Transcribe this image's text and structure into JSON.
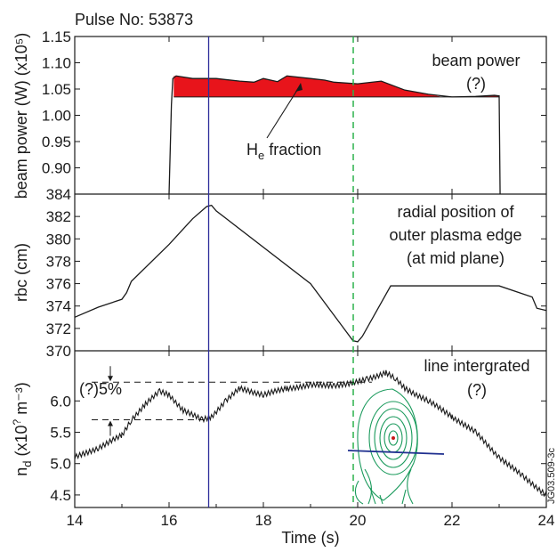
{
  "figure": {
    "pulse_label": "Pulse No: 53873",
    "figure_id": "JG03.509-3c",
    "xlabel": "Time (s)"
  },
  "chart_data": [
    {
      "type": "area",
      "panel": "top",
      "ylabel": "beam power (W) (x10⁵)",
      "xlim": [
        14,
        24
      ],
      "ylim": [
        0.85,
        1.15
      ],
      "x_ticks": [
        14,
        16,
        18,
        20,
        22,
        24
      ],
      "y_ticks": [
        "0.90",
        "0.95",
        "1.00",
        "1.05",
        "1.10",
        "1.15"
      ],
      "annotations": {
        "legend": "beam power",
        "legend_note": "(?)",
        "arrow_label": "H",
        "arrow_label_sub": "e",
        "arrow_label_rest": " fraction"
      },
      "series": [
        {
          "role": "outline",
          "x": [
            16.0,
            16.05,
            16.08,
            16.15,
            16.5,
            17.0,
            17.5,
            17.8,
            18.0,
            18.3,
            18.5,
            19.0,
            19.3,
            19.5,
            20.0,
            20.5,
            21.0,
            21.5,
            22.0,
            22.5,
            22.9,
            23.0,
            23.02
          ],
          "y": [
            0.85,
            1.02,
            1.07,
            1.075,
            1.07,
            1.07,
            1.065,
            1.063,
            1.07,
            1.064,
            1.075,
            1.07,
            1.067,
            1.063,
            1.06,
            1.065,
            1.048,
            1.04,
            1.035,
            1.036,
            1.038,
            1.037,
            0.85
          ]
        },
        {
          "role": "He fraction fill",
          "color": "#e8141b",
          "baseline": 1.035,
          "x": [
            16.1,
            16.5,
            17.0,
            17.5,
            17.8,
            18.0,
            18.3,
            18.5,
            19.0,
            19.3,
            19.5,
            20.0,
            20.5,
            21.0,
            21.5,
            21.8,
            22.0,
            22.5,
            22.9,
            23.0
          ],
          "y": [
            1.075,
            1.07,
            1.07,
            1.065,
            1.063,
            1.07,
            1.064,
            1.075,
            1.07,
            1.067,
            1.063,
            1.06,
            1.065,
            1.048,
            1.04,
            1.035,
            1.035,
            1.036,
            1.038,
            1.037
          ]
        }
      ]
    },
    {
      "type": "line",
      "panel": "middle",
      "ylabel": "rbc (cm)",
      "xlim": [
        14,
        24
      ],
      "ylim": [
        370,
        384
      ],
      "y_ticks": [
        "370",
        "372",
        "374",
        "376",
        "378",
        "380",
        "382",
        "384"
      ],
      "annotations": {
        "line1": "radial position of",
        "line2": "outer plasma edge",
        "line3": "(at mid plane)"
      },
      "series": [
        {
          "x": [
            14.0,
            14.5,
            15.0,
            15.1,
            15.2,
            16.0,
            16.5,
            16.8,
            16.9,
            17.0,
            19.0,
            19.9,
            20.0,
            20.1,
            20.7,
            21.0,
            22.0,
            23.0,
            23.7,
            23.8,
            24.0
          ],
          "y": [
            373.0,
            373.9,
            374.6,
            375.2,
            376.2,
            379.5,
            381.8,
            382.9,
            383.0,
            382.5,
            376.0,
            370.9,
            370.8,
            371.3,
            375.8,
            375.8,
            375.8,
            375.8,
            374.8,
            373.8,
            373.6
          ]
        }
      ]
    },
    {
      "type": "line",
      "panel": "bottom",
      "ylabel": "nd (x10? m⁻³)",
      "ylabel_parts": {
        "base": "n",
        "sub": "d",
        "rest": " (x10",
        "sup": "?",
        "tail": " m⁻³)"
      },
      "xlim": [
        14,
        24
      ],
      "ylim": [
        4.3,
        6.8
      ],
      "y_ticks": [
        "4.5",
        "5.0",
        "5.5",
        "6.0"
      ],
      "annotations": {
        "line1": "line intergrated",
        "line2": "(?)",
        "percent": "(?)5%",
        "high_ref": 6.3,
        "low_ref": 5.7
      },
      "series": [
        {
          "x": [
            14.0,
            14.5,
            15.0,
            15.2,
            15.5,
            15.8,
            16.0,
            16.3,
            16.7,
            16.9,
            17.2,
            17.5,
            18.0,
            18.5,
            19.0,
            19.5,
            19.9,
            20.2,
            20.6,
            20.8,
            21.0,
            21.5,
            22.0,
            22.5,
            23.0,
            23.5,
            24.0
          ],
          "y": [
            5.1,
            5.25,
            5.45,
            5.7,
            5.95,
            6.15,
            6.1,
            5.85,
            5.7,
            5.75,
            6.0,
            6.2,
            6.1,
            6.2,
            6.25,
            6.25,
            6.28,
            6.35,
            6.45,
            6.35,
            6.2,
            6.0,
            5.75,
            5.5,
            5.1,
            4.8,
            4.5
          ]
        }
      ]
    }
  ]
}
